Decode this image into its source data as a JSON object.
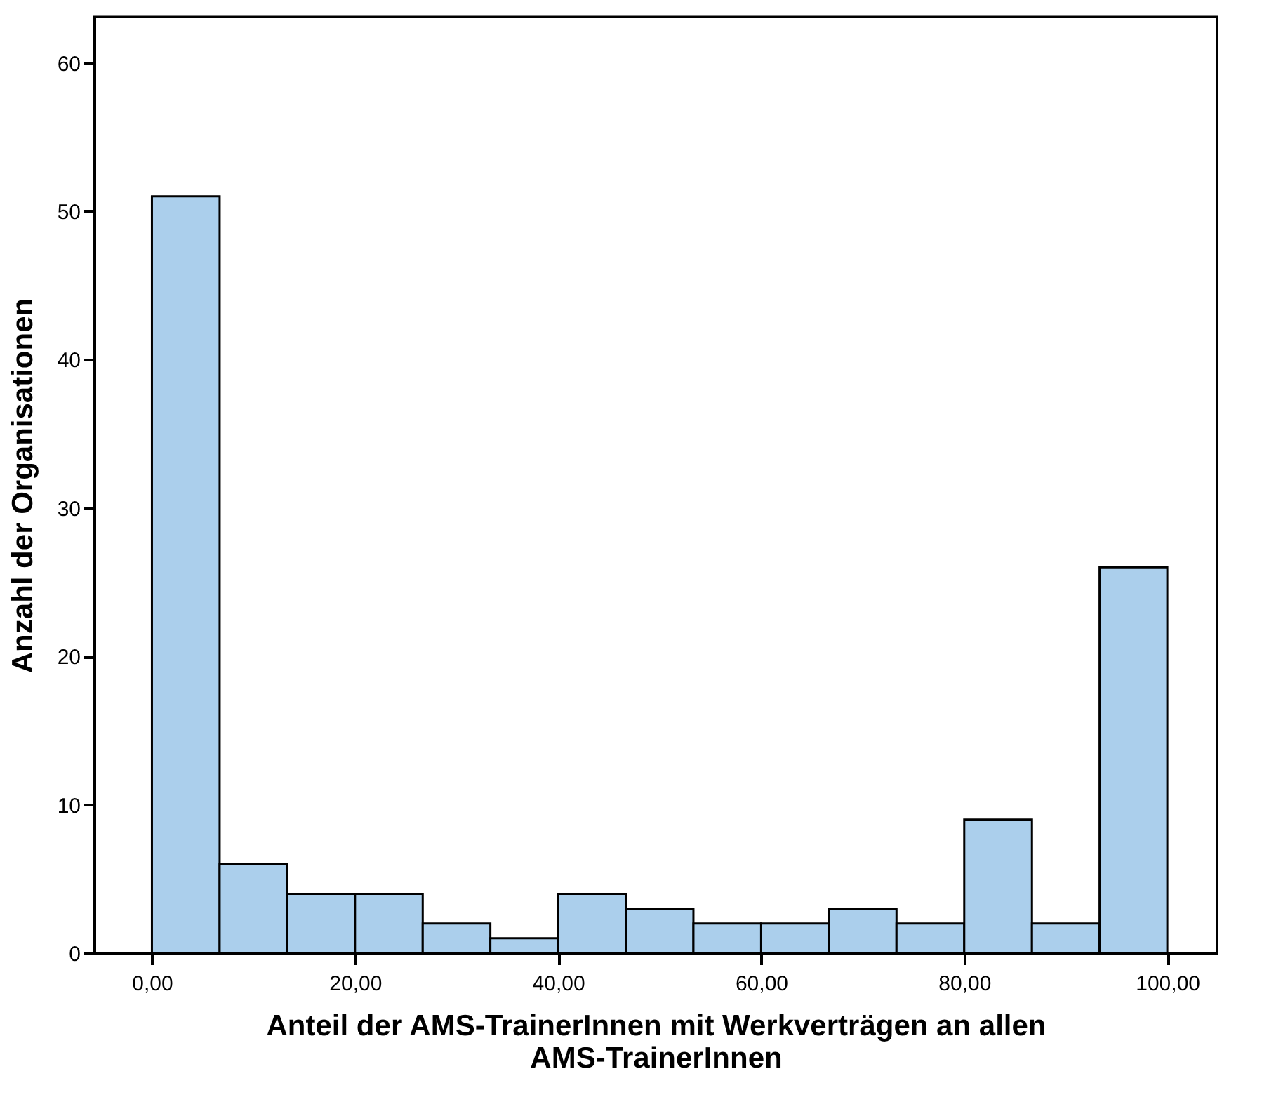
{
  "chart_data": {
    "type": "histogram",
    "xlabel": "Anteil der AMS-TrainerInnen mit Werkverträgen an allen AMS-TrainerInnen",
    "ylabel": "Anzahl der Organisationen",
    "bins": [
      0,
      6.67,
      13.33,
      20,
      26.67,
      33.33,
      40,
      46.67,
      53.33,
      60,
      66.67,
      73.33,
      80,
      86.67,
      93.33,
      100
    ],
    "values": [
      51,
      6,
      4,
      4,
      2,
      1,
      4,
      3,
      2,
      2,
      3,
      2,
      9,
      2,
      26
    ],
    "color": "#abcfec",
    "xlim": [
      -5.7,
      104.9
    ],
    "xticks": [
      {
        "value": 0,
        "label": "0,00"
      },
      {
        "value": 20,
        "label": "20,00"
      },
      {
        "value": 40,
        "label": "40,00"
      },
      {
        "value": 60,
        "label": "60,00"
      },
      {
        "value": 80,
        "label": "80,00"
      },
      {
        "value": 100,
        "label": "100,00"
      }
    ],
    "ylim": [
      0,
      63.1
    ],
    "yticks": [
      0,
      10,
      20,
      30,
      40,
      50,
      60
    ],
    "grid": false
  }
}
